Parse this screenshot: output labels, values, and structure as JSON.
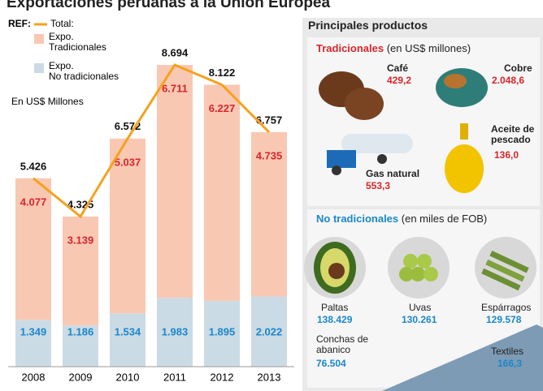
{
  "chart_data": {
    "type": "bar",
    "title": "Exportaciones peruanas a la Unión Europea",
    "legend_heading": "REF:",
    "unit_label": "En US$ Millones",
    "categories": [
      "2008",
      "2009",
      "2010",
      "2011",
      "2012",
      "2013"
    ],
    "series": [
      {
        "name": "Expo. Tradicionales",
        "color": "#f9c8b3",
        "label_color": "#d7262b",
        "values": [
          4077,
          3139,
          5037,
          6711,
          6227,
          4735
        ],
        "value_labels": [
          "4.077",
          "3.139",
          "5.037",
          "6.711",
          "6.227",
          "4.735"
        ]
      },
      {
        "name": "Expo. No tradicionales",
        "color": "#cbdbe5",
        "label_color": "#1b87c9",
        "values": [
          1349,
          1186,
          1534,
          1983,
          1895,
          2022
        ],
        "value_labels": [
          "1.349",
          "1.186",
          "1.534",
          "1.983",
          "1.895",
          "2.022"
        ]
      },
      {
        "name": "Total:",
        "color": "#f4a21e",
        "label_color": "#111111",
        "values": [
          5426,
          4325,
          6572,
          8694,
          8122,
          6757
        ],
        "value_labels": [
          "5.426",
          "4.325",
          "6.572",
          "8.694",
          "8.122",
          "6.757"
        ]
      }
    ]
  },
  "products": {
    "heading": "Principales productos",
    "traditional": {
      "title": "Tradicionales",
      "unit": "(en US$ millones)",
      "items": [
        {
          "name": "Café",
          "value": "429,2"
        },
        {
          "name": "Cobre",
          "value": "2.048,6"
        },
        {
          "name": "Gas natural",
          "value": "553,3"
        },
        {
          "name": "Aceite de pescado",
          "value": "136,0"
        }
      ]
    },
    "non_traditional": {
      "title": "No tradicionales",
      "unit": "(en miles de FOB)",
      "items": [
        {
          "name": "Paltas",
          "value": "138.429"
        },
        {
          "name": "Uvas",
          "value": "130.261"
        },
        {
          "name": "Espárragos",
          "value": "129.578"
        },
        {
          "name": "Conchas de abanico",
          "value": "76.504"
        },
        {
          "name": "Textiles",
          "value": "166,3"
        }
      ]
    }
  }
}
